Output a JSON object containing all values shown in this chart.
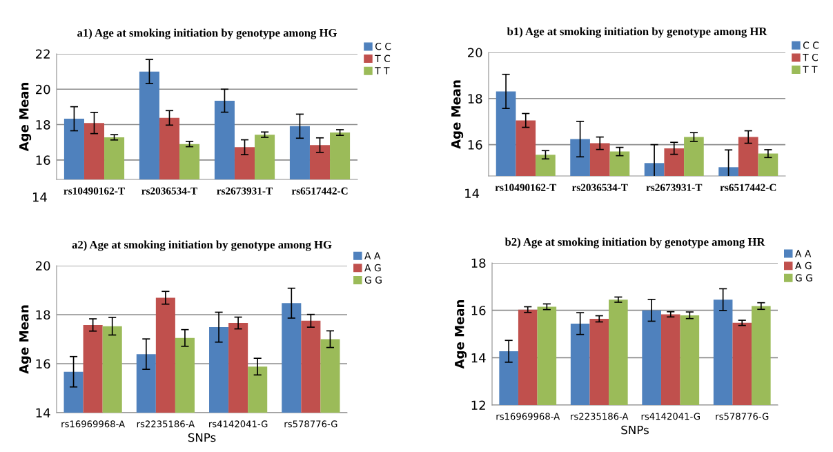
{
  "chart_data": [
    {
      "type": "bar",
      "title": "a1) Age at smoking initiation by genotype among HG",
      "ylabel": "Age Mean",
      "categories": [
        "rs10490162-T",
        "rs2036534-T",
        "rs2673931-T",
        "rs6517442-C"
      ],
      "ylim": [
        14.9,
        22
      ],
      "yticks": [
        16,
        18,
        20,
        22
      ],
      "grid": "y",
      "legend": "top right",
      "annotations": [
        "14"
      ],
      "series": [
        {
          "name": "C C",
          "color": "#4f81bd",
          "values": [
            18.33,
            21.0,
            19.35,
            17.91
          ],
          "errors": [
            0.68,
            0.68,
            0.65,
            0.68
          ]
        },
        {
          "name": "T C",
          "color": "#c0504d",
          "values": [
            18.09,
            18.38,
            16.72,
            16.84
          ],
          "errors": [
            0.6,
            0.41,
            0.42,
            0.41
          ]
        },
        {
          "name": "T T",
          "color": "#9bbb59",
          "values": [
            17.28,
            16.9,
            17.43,
            17.55
          ],
          "errors": [
            0.15,
            0.15,
            0.15,
            0.16
          ]
        }
      ]
    },
    {
      "type": "bar",
      "title": "b1) Age at smoking initiation by genotype among HR",
      "ylabel": "Age Mean",
      "categories": [
        "rs10490162-T",
        "rs2036534-T",
        "rs2673931-T",
        "rs6517442-C"
      ],
      "ylim": [
        14.64,
        20
      ],
      "yticks": [
        16,
        18,
        20
      ],
      "grid": "y",
      "legend": "top right",
      "annotations": [
        "14"
      ],
      "series": [
        {
          "name": "C C",
          "color": "#4f81bd",
          "values": [
            18.31,
            16.24,
            15.2,
            15.02
          ],
          "errors": [
            0.74,
            0.77,
            0.8,
            0.75
          ]
        },
        {
          "name": "T C",
          "color": "#c0504d",
          "values": [
            17.05,
            16.06,
            15.84,
            16.33
          ],
          "errors": [
            0.3,
            0.27,
            0.26,
            0.27
          ]
        },
        {
          "name": "T T",
          "color": "#9bbb59",
          "values": [
            15.56,
            15.7,
            16.33,
            15.61
          ],
          "errors": [
            0.18,
            0.18,
            0.19,
            0.17
          ]
        }
      ]
    },
    {
      "type": "bar",
      "title": "a2) Age at smoking initiation by genotype among HG",
      "ylabel": "Age Mean",
      "xlabel": "SNPs",
      "categories": [
        "rs16969968-A",
        "rs2235186-A",
        "rs4142041-G",
        "rs578776-G"
      ],
      "ylim": [
        14,
        20
      ],
      "yticks": [
        14,
        16,
        18,
        20
      ],
      "grid": "y",
      "legend": "top right",
      "series": [
        {
          "name": "A A",
          "color": "#4f81bd",
          "values": [
            15.67,
            16.39,
            17.49,
            18.47
          ],
          "errors": [
            0.62,
            0.62,
            0.61,
            0.61
          ]
        },
        {
          "name": "A G",
          "color": "#c0504d",
          "values": [
            17.58,
            18.69,
            17.66,
            17.75
          ],
          "errors": [
            0.25,
            0.26,
            0.24,
            0.26
          ]
        },
        {
          "name": "G G",
          "color": "#9bbb59",
          "values": [
            17.53,
            17.05,
            15.88,
            17.0
          ],
          "errors": [
            0.36,
            0.34,
            0.34,
            0.34
          ]
        }
      ]
    },
    {
      "type": "bar",
      "title": "b2) Age at smoking initiation by genotype among HR",
      "ylabel": "Age Mean",
      "xlabel": "SNPs",
      "categories": [
        "rs16969968-A",
        "rs2235186-A",
        "rs4142041-G",
        "rs578776-G"
      ],
      "ylim": [
        12,
        18
      ],
      "yticks": [
        12,
        14,
        16,
        18
      ],
      "grid": "y",
      "legend": "top right",
      "series": [
        {
          "name": "A A",
          "color": "#4f81bd",
          "values": [
            14.27,
            15.44,
            16.0,
            16.45
          ],
          "errors": [
            0.46,
            0.46,
            0.46,
            0.46
          ]
        },
        {
          "name": "A G",
          "color": "#c0504d",
          "values": [
            16.03,
            15.64,
            15.83,
            15.47
          ],
          "errors": [
            0.12,
            0.13,
            0.11,
            0.11
          ]
        },
        {
          "name": "G G",
          "color": "#9bbb59",
          "values": [
            16.15,
            16.45,
            15.79,
            16.18
          ],
          "errors": [
            0.12,
            0.11,
            0.14,
            0.14
          ]
        }
      ]
    }
  ]
}
